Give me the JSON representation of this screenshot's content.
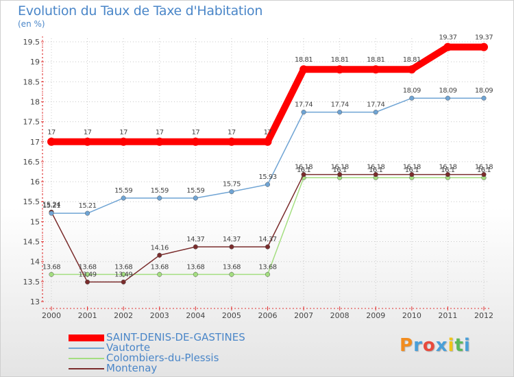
{
  "chart_data": {
    "type": "line",
    "title": "Evolution du Taux de Taxe d'Habitation",
    "subtitle": "(en %)",
    "x": [
      "2000",
      "2001",
      "2002",
      "2003",
      "2004",
      "2005",
      "2006",
      "2007",
      "2008",
      "2009",
      "2010",
      "2011",
      "2012"
    ],
    "y_ticks": [
      "13",
      "13.5",
      "14",
      "14.5",
      "15",
      "15.5",
      "16",
      "16.5",
      "17",
      "17.5",
      "18",
      "18.5",
      "19",
      "19.5"
    ],
    "ylim": [
      13,
      19.5
    ],
    "grid": true,
    "series": [
      {
        "name": "SAINT-DENIS-DE-GASTINES",
        "color": "#ff0000",
        "values": [
          17,
          17,
          17,
          17,
          17,
          17,
          17,
          18.81,
          18.81,
          18.81,
          18.81,
          19.37,
          19.37
        ],
        "labels": [
          "17",
          "17",
          "17",
          "17",
          "17",
          "17",
          "17",
          "18.81",
          "18.81",
          "18.81",
          "18.81",
          "19.37",
          "19.37"
        ]
      },
      {
        "name": "Vautorte",
        "color": "#6fa4d4",
        "values": [
          15.21,
          15.21,
          15.59,
          15.59,
          15.59,
          15.75,
          15.93,
          17.74,
          17.74,
          17.74,
          18.09,
          18.09,
          18.09
        ],
        "labels": [
          "15.21",
          "15.21",
          "15.59",
          "15.59",
          "15.59",
          "15.75",
          "15.93",
          "17.74",
          "17.74",
          "17.74",
          "18.09",
          "18.09",
          "18.09"
        ]
      },
      {
        "name": "Colombiers-du-Plessis",
        "color": "#a4de80",
        "values": [
          13.68,
          13.68,
          13.68,
          13.68,
          13.68,
          13.68,
          13.68,
          16.1,
          16.1,
          16.1,
          16.1,
          16.1,
          16.1
        ],
        "labels": [
          "13.68",
          "13.68",
          "13.68",
          "13.68",
          "13.68",
          "13.68",
          "13.68",
          "16.1",
          "16.1",
          "16.1",
          "16.1",
          "16.1",
          "16.1"
        ]
      },
      {
        "name": "Montenay",
        "color": "#7a2c2c",
        "values": [
          15.24,
          13.49,
          13.49,
          14.16,
          14.37,
          14.37,
          14.37,
          16.18,
          16.18,
          16.18,
          16.18,
          16.18,
          16.18
        ],
        "labels": [
          "15.24",
          "13.49",
          "13.49",
          "14.16",
          "14.37",
          "14.37",
          "14.37",
          "16.18",
          "16.18",
          "16.18",
          "16.18",
          "16.18",
          "16.18"
        ]
      }
    ]
  },
  "logo": {
    "letters": [
      "P",
      "r",
      "o",
      "x",
      "i",
      "t",
      "i"
    ],
    "colors": [
      "#f28c1e",
      "#4a9fd8",
      "#e84a3c",
      "#4a9fd8",
      "#f0c419",
      "#5bb85b",
      "#4a9fd8"
    ]
  }
}
